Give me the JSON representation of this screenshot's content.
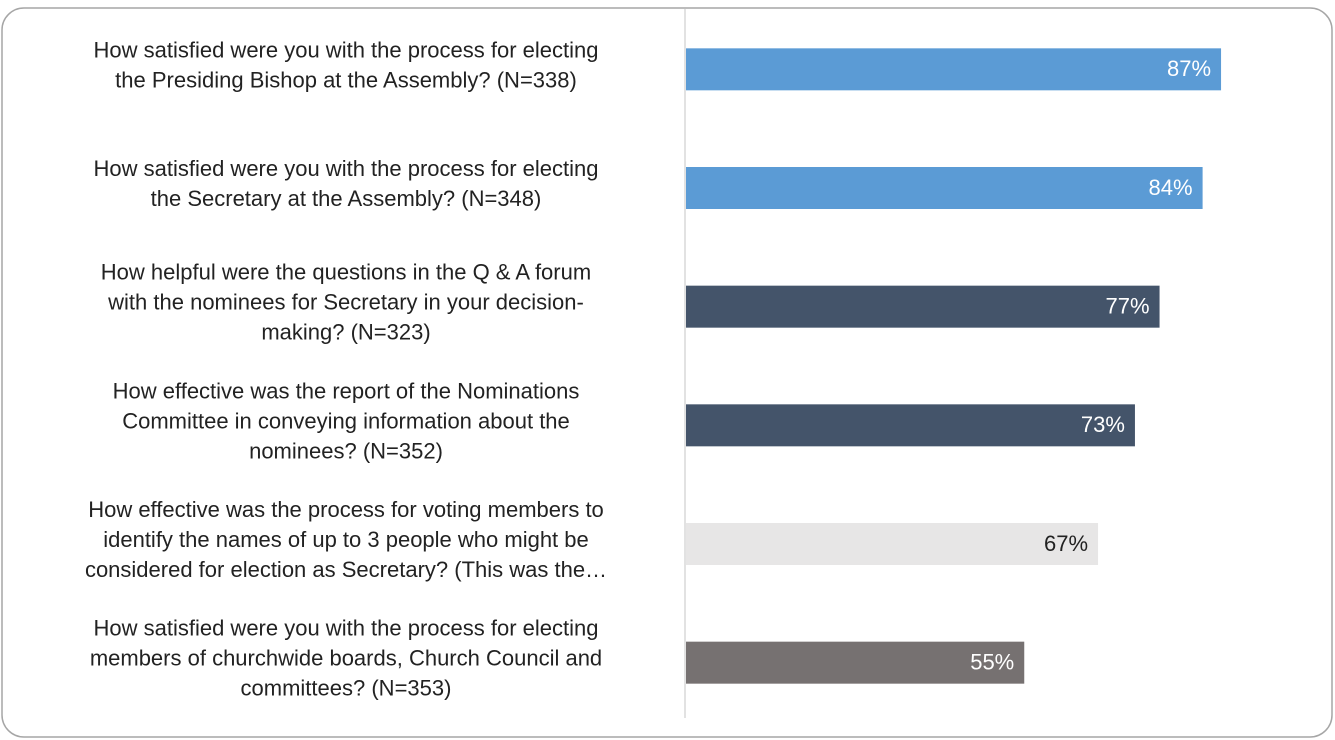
{
  "chart_data": {
    "type": "hbar",
    "categories": [
      "How satisfied were you with the process for electing\nthe Presiding Bishop at the Assembly? (N=338)",
      "How satisfied were you with the process for electing\nthe Secretary at the Assembly? (N=348)",
      "How helpful were the questions in the Q & A forum\nwith the nominees for Secretary in your decision-\nmaking? (N=323)",
      "How effective was the report of the Nominations\nCommittee in conveying information about the\nnominees? (N=352)",
      "How effective was the process for voting members to\nidentify the names of up to 3 people who might be\nconsidered for election as Secretary? (This was the…",
      "How satisfied were you with the process for electing\nmembers of churchwide boards, Church Council and\ncommittees? (N=353)"
    ],
    "values": [
      87,
      84,
      77,
      73,
      67,
      55
    ],
    "value_labels": [
      "87%",
      "84%",
      "77%",
      "73%",
      "67%",
      "55%"
    ],
    "colors": [
      "#5b9bd5",
      "#5b9bd5",
      "#44546a",
      "#44546a",
      "#e7e6e6",
      "#767171"
    ],
    "xlim": [
      0,
      100
    ]
  }
}
